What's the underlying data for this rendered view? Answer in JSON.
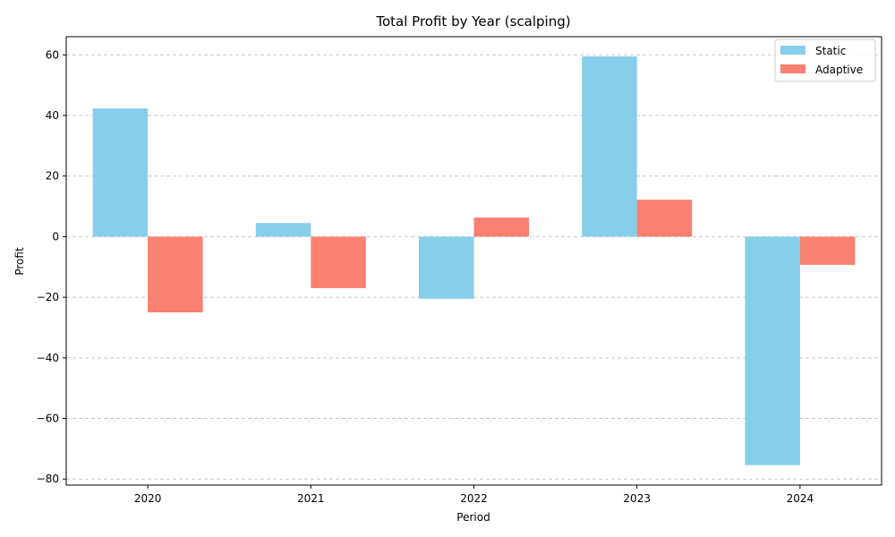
{
  "chart_data": {
    "type": "bar",
    "title": "Total Profit by Year (scalping)",
    "xlabel": "Period",
    "ylabel": "Profit",
    "categories": [
      "2020",
      "2021",
      "2022",
      "2023",
      "2024"
    ],
    "series": [
      {
        "name": "Static",
        "color": "#87CEEB",
        "values": [
          42.3,
          4.5,
          -20.5,
          59.5,
          -75.4
        ]
      },
      {
        "name": "Adaptive",
        "color": "#FA8072",
        "values": [
          -25.0,
          -17.0,
          6.3,
          12.2,
          -9.3
        ]
      }
    ],
    "ylim": [
      -82,
      66
    ],
    "yticks": [
      -80,
      -60,
      -40,
      -20,
      0,
      20,
      40,
      60
    ],
    "grid": "y-dashed",
    "legend": "top-right"
  }
}
